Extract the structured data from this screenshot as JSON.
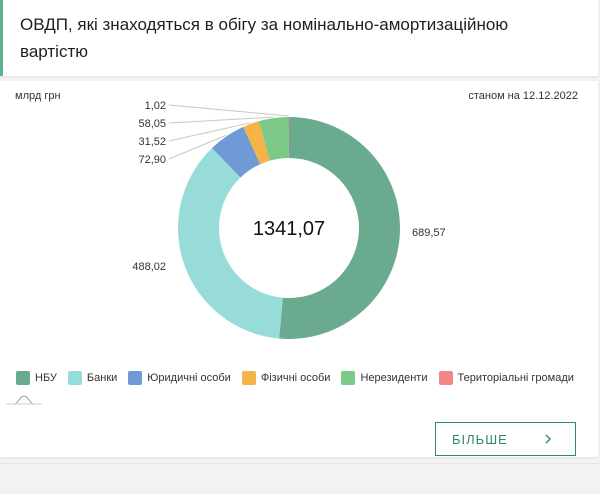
{
  "title": "ОВДП, які знаходяться в обігу за номінально-амортизаційною вартістю",
  "unit_label": "млрд грн",
  "as_of": "станом на 12.12.2022",
  "more_button": "БІЛЬШЕ",
  "chart_data": {
    "type": "donut",
    "total_label": "1341,07",
    "series": [
      {
        "name": "НБУ",
        "value": 689.57,
        "label": "689,57",
        "color": "#6aab90"
      },
      {
        "name": "Банки",
        "value": 488.02,
        "label": "488,02",
        "color": "#98dcd9"
      },
      {
        "name": "Юридичні особи",
        "value": 72.9,
        "label": "72,90",
        "color": "#6f9ad6"
      },
      {
        "name": "Фізичні особи",
        "value": 31.52,
        "label": "31,52",
        "color": "#f5b348"
      },
      {
        "name": "Нерезиденти",
        "value": 58.05,
        "label": "58,05",
        "color": "#7dc987"
      },
      {
        "name": "Територіальні громади",
        "value": 1.02,
        "label": "1,02",
        "color": "#f28585"
      }
    ],
    "legend_position": "bottom"
  }
}
